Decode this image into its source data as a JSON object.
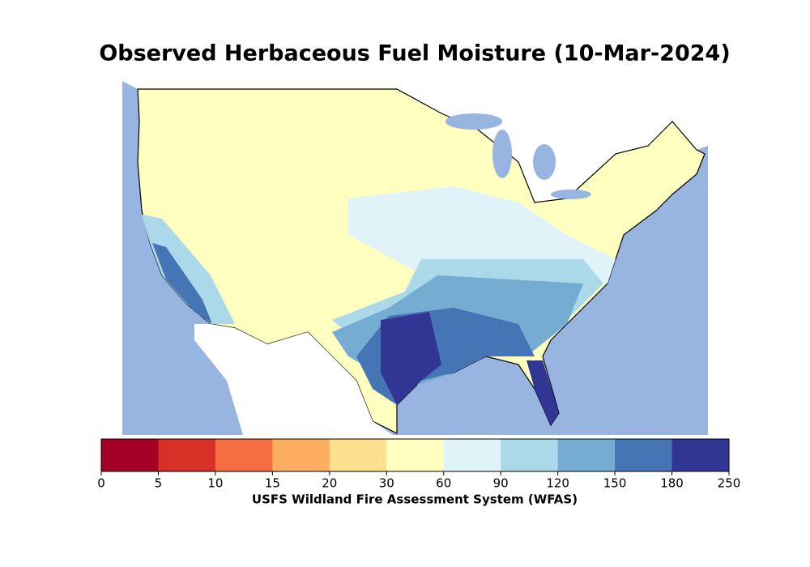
{
  "title": "Observed Herbaceous Fuel Moisture (10-Mar-2024)",
  "colorbar": {
    "boundaries": [
      0,
      5,
      10,
      15,
      20,
      30,
      60,
      90,
      120,
      150,
      180,
      250
    ],
    "colors": [
      "#a50026",
      "#d73027",
      "#f46d43",
      "#fdae61",
      "#fee090",
      "#ffffbf",
      "#e0f3f8",
      "#abd9e9",
      "#74add1",
      "#4575b4",
      "#313695"
    ],
    "label": "USFS Wildland Fire Assessment System (WFAS)"
  }
}
